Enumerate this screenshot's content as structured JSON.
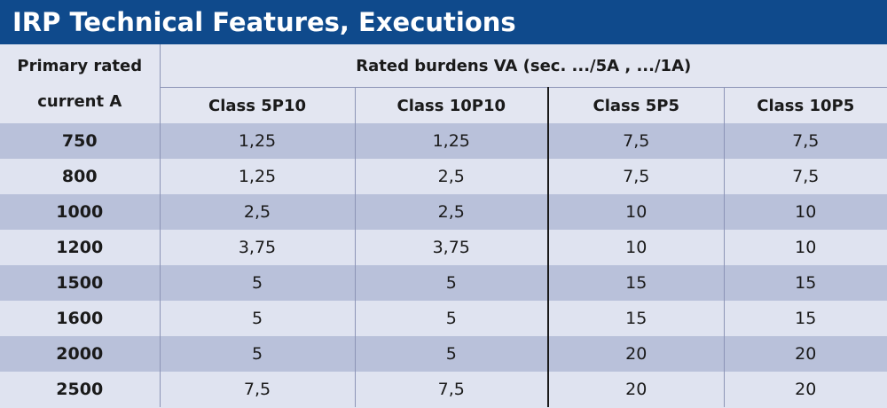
{
  "title": "IRP Technical Features, Executions",
  "header": {
    "primary_line1": "Primary rated",
    "primary_line2": "current  A",
    "group_label": "Rated burdens VA  (sec. .../5A , .../1A)",
    "classes": [
      "Class 5P10",
      "Class 10P10",
      "Class 5P5",
      "Class 10P5"
    ]
  },
  "rows": [
    {
      "current": "750",
      "values": [
        "1,25",
        "1,25",
        "7,5",
        "7,5"
      ]
    },
    {
      "current": "800",
      "values": [
        "1,25",
        "2,5",
        "7,5",
        "7,5"
      ]
    },
    {
      "current": "1000",
      "values": [
        "2,5",
        "2,5",
        "10",
        "10"
      ]
    },
    {
      "current": "1200",
      "values": [
        "3,75",
        "3,75",
        "10",
        "10"
      ]
    },
    {
      "current": "1500",
      "values": [
        "5",
        "5",
        "15",
        "15"
      ]
    },
    {
      "current": "1600",
      "values": [
        "5",
        "5",
        "15",
        "15"
      ]
    },
    {
      "current": "2000",
      "values": [
        "5",
        "5",
        "20",
        "20"
      ]
    },
    {
      "current": "2500",
      "values": [
        "7,5",
        "7,5",
        "20",
        "20"
      ]
    }
  ],
  "colors": {
    "title_bar": "#0f4a8c",
    "row_dark": "#b9c1da",
    "row_light": "#dfe3f0"
  }
}
